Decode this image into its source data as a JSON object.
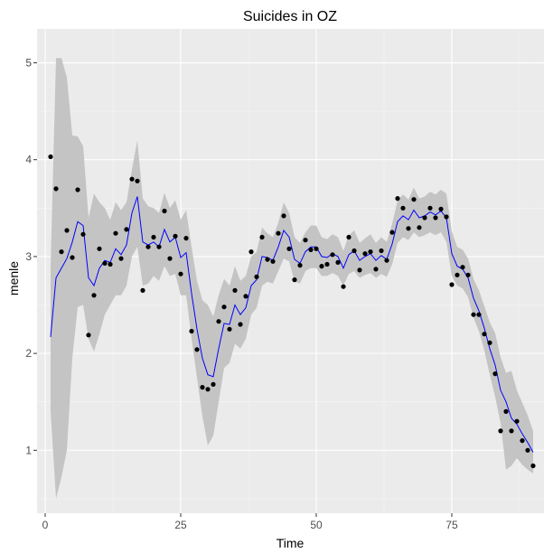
{
  "chart_data": {
    "type": "line",
    "title": "Suicides in OZ",
    "xlabel": "Time",
    "ylabel": "menle",
    "xlim": [
      -1.5,
      92
    ],
    "ylim": [
      0.35,
      5.35
    ],
    "xticks": [
      0,
      25,
      50,
      75
    ],
    "yticks": [
      1,
      2,
      3,
      4,
      5
    ],
    "grid": true,
    "legend": "none",
    "colors": {
      "panel": "#ebebeb",
      "grid_major": "#ffffff",
      "grid_minor": "#f5f5f5",
      "points": "#000000",
      "line": "#0000ff",
      "ribbon": "#c4c4c4",
      "tick_label": "#4d4d4d"
    },
    "series": [
      {
        "kind": "points",
        "x": [
          1,
          2,
          3,
          4,
          5,
          6,
          7,
          8,
          9,
          10,
          11,
          12,
          13,
          14,
          15,
          16,
          17,
          18,
          19,
          20,
          21,
          22,
          23,
          24,
          25,
          26,
          27,
          28,
          29,
          30,
          31,
          32,
          33,
          34,
          35,
          36,
          37,
          38,
          39,
          40,
          41,
          42,
          43,
          44,
          45,
          46,
          47,
          48,
          49,
          50,
          51,
          52,
          53,
          54,
          55,
          56,
          57,
          58,
          59,
          60,
          61,
          62,
          63,
          64,
          65,
          66,
          67,
          68,
          69,
          70,
          71,
          72,
          73,
          74,
          75,
          76,
          77,
          78,
          79,
          80,
          81,
          82,
          83,
          84,
          85,
          86,
          87,
          88,
          89,
          90
        ],
        "y": [
          4.03,
          3.7,
          3.05,
          3.27,
          2.99,
          3.69,
          3.23,
          2.19,
          2.6,
          3.08,
          2.93,
          2.92,
          3.24,
          2.98,
          3.28,
          3.8,
          3.78,
          2.65,
          3.1,
          3.2,
          3.1,
          3.47,
          2.98,
          3.21,
          2.82,
          3.19,
          2.23,
          2.04,
          1.65,
          1.63,
          1.68,
          2.33,
          2.48,
          2.25,
          2.65,
          2.3,
          2.59,
          3.05,
          2.79,
          3.2,
          2.97,
          2.95,
          3.24,
          3.42,
          3.08,
          2.76,
          2.91,
          3.17,
          3.07,
          3.08,
          2.9,
          2.92,
          3.02,
          2.94,
          2.69,
          3.2,
          3.06,
          2.86,
          3.03,
          3.05,
          2.87,
          3.06,
          2.96,
          3.25,
          3.6,
          3.5,
          3.29,
          3.59,
          3.3,
          3.4,
          3.5,
          3.4,
          3.49,
          3.41,
          2.71,
          2.81,
          2.89,
          2.81,
          2.4,
          2.4,
          2.2,
          2.11,
          1.79,
          1.2,
          1.4,
          1.2,
          1.3,
          1.1,
          1.0,
          0.84
        ]
      },
      {
        "kind": "smooth",
        "x": [
          1,
          2,
          3,
          4,
          5,
          6,
          7,
          8,
          9,
          10,
          11,
          12,
          13,
          14,
          15,
          16,
          17,
          18,
          19,
          20,
          21,
          22,
          23,
          24,
          25,
          26,
          27,
          28,
          29,
          30,
          31,
          32,
          33,
          34,
          35,
          36,
          37,
          38,
          39,
          40,
          41,
          42,
          43,
          44,
          45,
          46,
          47,
          48,
          49,
          50,
          51,
          52,
          53,
          54,
          55,
          56,
          57,
          58,
          59,
          60,
          61,
          62,
          63,
          64,
          65,
          66,
          67,
          68,
          69,
          70,
          71,
          72,
          73,
          74,
          75,
          76,
          77,
          78,
          79,
          80,
          81,
          82,
          83,
          84,
          85,
          86,
          87,
          88,
          89,
          90
        ],
        "y": [
          2.17,
          2.78,
          2.88,
          2.98,
          3.15,
          3.36,
          3.32,
          2.78,
          2.7,
          2.88,
          2.96,
          2.94,
          3.08,
          3.02,
          3.12,
          3.45,
          3.62,
          3.15,
          3.12,
          3.15,
          3.1,
          3.28,
          3.15,
          3.2,
          2.99,
          3.04,
          2.62,
          2.25,
          1.95,
          1.78,
          1.76,
          2.05,
          2.31,
          2.3,
          2.5,
          2.4,
          2.47,
          2.7,
          2.76,
          3.0,
          2.99,
          2.96,
          3.1,
          3.27,
          3.2,
          2.97,
          2.93,
          3.05,
          3.1,
          3.1,
          3.0,
          2.99,
          3.03,
          3.0,
          2.88,
          3.02,
          3.06,
          2.96,
          3.0,
          3.03,
          2.96,
          3.01,
          2.97,
          3.13,
          3.36,
          3.42,
          3.38,
          3.48,
          3.4,
          3.42,
          3.46,
          3.43,
          3.47,
          3.4,
          3.03,
          2.9,
          2.87,
          2.78,
          2.57,
          2.44,
          2.26,
          2.05,
          1.88,
          1.62,
          1.5,
          1.33,
          1.27,
          1.17,
          1.08,
          0.98
        ]
      },
      {
        "kind": "band",
        "x": [
          1,
          2,
          3,
          4,
          5,
          6,
          7,
          8,
          9,
          10,
          11,
          12,
          13,
          14,
          15,
          16,
          17,
          18,
          19,
          20,
          21,
          22,
          23,
          24,
          25,
          26,
          27,
          28,
          29,
          30,
          31,
          32,
          33,
          34,
          35,
          36,
          37,
          38,
          39,
          40,
          41,
          42,
          43,
          44,
          45,
          46,
          47,
          48,
          49,
          50,
          51,
          52,
          53,
          54,
          55,
          56,
          57,
          58,
          59,
          60,
          61,
          62,
          63,
          64,
          65,
          66,
          67,
          68,
          69,
          70,
          71,
          72,
          73,
          74,
          75,
          76,
          77,
          78,
          79,
          80,
          81,
          82,
          83,
          84,
          85,
          86,
          87,
          88,
          89,
          90
        ],
        "lower": [
          1.4,
          0.5,
          0.72,
          1.0,
          1.95,
          2.48,
          2.5,
          2.15,
          2.02,
          2.2,
          2.4,
          2.5,
          2.6,
          2.6,
          2.7,
          3.0,
          3.1,
          2.7,
          2.72,
          2.8,
          2.75,
          2.9,
          2.8,
          2.82,
          2.6,
          2.6,
          2.15,
          1.75,
          1.35,
          1.05,
          1.15,
          1.5,
          1.85,
          1.9,
          2.1,
          2.05,
          2.15,
          2.4,
          2.47,
          2.7,
          2.74,
          2.72,
          2.85,
          2.98,
          2.95,
          2.74,
          2.72,
          2.85,
          2.88,
          2.88,
          2.8,
          2.8,
          2.83,
          2.8,
          2.7,
          2.82,
          2.85,
          2.78,
          2.81,
          2.83,
          2.78,
          2.82,
          2.79,
          2.92,
          3.14,
          3.2,
          3.17,
          3.25,
          3.2,
          3.22,
          3.25,
          3.22,
          3.25,
          3.15,
          2.8,
          2.7,
          2.67,
          2.58,
          2.37,
          2.23,
          2.03,
          1.78,
          1.55,
          1.28,
          0.8,
          0.84,
          0.92,
          0.85,
          0.8,
          0.76
        ],
        "upper": [
          2.9,
          5.05,
          5.05,
          4.85,
          4.25,
          4.24,
          4.14,
          3.4,
          3.65,
          3.56,
          3.5,
          3.38,
          3.56,
          3.48,
          3.56,
          3.9,
          4.2,
          3.6,
          3.52,
          3.5,
          3.45,
          3.66,
          3.5,
          3.58,
          3.38,
          3.48,
          3.1,
          2.75,
          2.55,
          2.5,
          2.38,
          2.6,
          2.77,
          2.7,
          2.9,
          2.75,
          2.8,
          3.0,
          3.05,
          3.3,
          3.24,
          3.2,
          3.35,
          3.56,
          3.45,
          3.2,
          3.14,
          3.25,
          3.32,
          3.32,
          3.2,
          3.18,
          3.23,
          3.2,
          3.06,
          3.22,
          3.27,
          3.14,
          3.19,
          3.23,
          3.14,
          3.2,
          3.15,
          3.34,
          3.58,
          3.64,
          3.59,
          3.71,
          3.6,
          3.62,
          3.67,
          3.64,
          3.69,
          3.65,
          3.26,
          3.1,
          3.07,
          2.98,
          2.77,
          2.65,
          2.49,
          2.32,
          2.21,
          1.96,
          1.8,
          1.82,
          1.62,
          1.49,
          1.36,
          1.2
        ]
      }
    ]
  }
}
